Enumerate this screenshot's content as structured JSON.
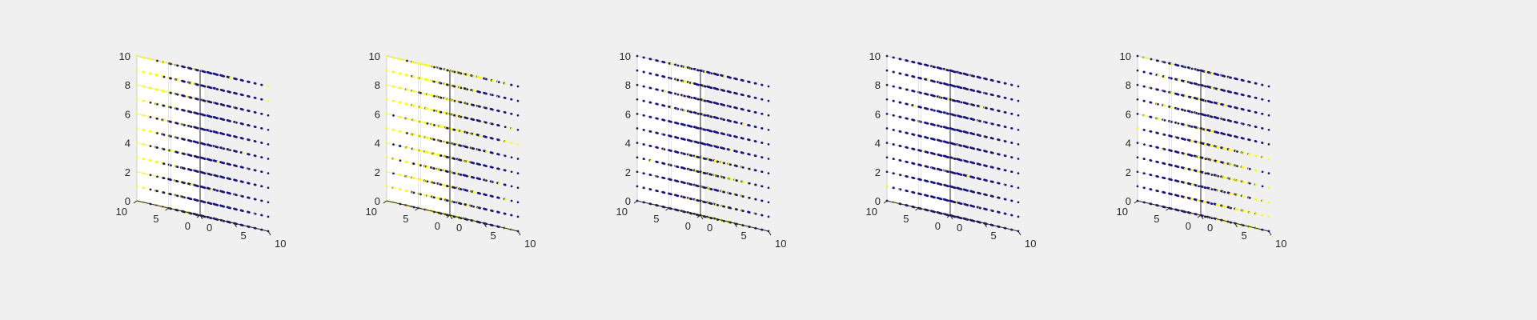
{
  "figure": {
    "background": "#f0f0f0",
    "axes_background": "#ffffff"
  },
  "chart_data": [
    {
      "type": "scatter3d",
      "title": "",
      "grid": true,
      "xlim": [
        0,
        10
      ],
      "ylim": [
        0,
        10
      ],
      "zlim": [
        0,
        10
      ],
      "x_ticks": [
        "0",
        "5",
        "10"
      ],
      "y_ticks": [
        "0",
        "5",
        "10"
      ],
      "z_ticks": [
        "0",
        "2",
        "4",
        "6",
        "8",
        "10"
      ],
      "grid_points": "integer lattice 0-10 on each axis",
      "colors": {
        "class_a": "#1a1580",
        "class_b": "#ffff00"
      },
      "yellow_region": {
        "description": "scattered yellow pockets near the x=0 back face and along the y=10 side"
      }
    },
    {
      "type": "scatter3d",
      "title": "",
      "grid": true,
      "xlim": [
        0,
        10
      ],
      "ylim": [
        0,
        10
      ],
      "zlim": [
        0,
        10
      ],
      "x_ticks": [
        "0",
        "5",
        "10"
      ],
      "y_ticks": [
        "0",
        "5",
        "10"
      ],
      "z_ticks": [
        "0",
        "2",
        "4",
        "6",
        "8",
        "10"
      ],
      "grid_points": "integer lattice 0-10 on each axis",
      "colors": {
        "class_a": "#1a1580",
        "class_b": "#ffff00"
      },
      "yellow_region": {
        "description": "large yellow majority filling the left and upper portion of the cube"
      }
    },
    {
      "type": "scatter3d",
      "title": "",
      "grid": true,
      "xlim": [
        0,
        10
      ],
      "ylim": [
        0,
        10
      ],
      "zlim": [
        0,
        10
      ],
      "x_ticks": [
        "0",
        "5",
        "10"
      ],
      "y_ticks": [
        "0",
        "5",
        "10"
      ],
      "z_ticks": [
        "0",
        "2",
        "4",
        "6",
        "8",
        "10"
      ],
      "grid_points": "integer lattice 0-10 on each axis",
      "colors": {
        "class_a": "#1a1580",
        "class_b": "#ffff00"
      },
      "yellow_region": {
        "description": "yellow points concentrated in the lower central front region"
      }
    },
    {
      "type": "scatter3d",
      "title": "",
      "grid": true,
      "xlim": [
        0,
        10
      ],
      "ylim": [
        0,
        10
      ],
      "zlim": [
        0,
        10
      ],
      "x_ticks": [
        "0",
        "5",
        "10"
      ],
      "y_ticks": [
        "0",
        "5",
        "10"
      ],
      "z_ticks": [
        "0",
        "2",
        "4",
        "6",
        "8",
        "10"
      ],
      "grid_points": "integer lattice 0-10 on each axis",
      "colors": {
        "class_a": "#1a1580",
        "class_b": "#ffff00"
      },
      "yellow_region": {
        "description": "few sparse yellow points, mostly dark blue cube"
      }
    },
    {
      "type": "scatter3d",
      "title": "",
      "grid": true,
      "xlim": [
        0,
        10
      ],
      "ylim": [
        0,
        10
      ],
      "zlim": [
        0,
        10
      ],
      "x_ticks": [
        "0",
        "5",
        "10"
      ],
      "y_ticks": [
        "0",
        "5",
        "10"
      ],
      "z_ticks": [
        "0",
        "2",
        "4",
        "6",
        "8",
        "10"
      ],
      "grid_points": "integer lattice 0-10 on each axis",
      "colors": {
        "class_a": "#1a1580",
        "class_b": "#ffff00"
      },
      "yellow_region": {
        "description": "yellow points concentrated in the lower right front region"
      }
    }
  ]
}
